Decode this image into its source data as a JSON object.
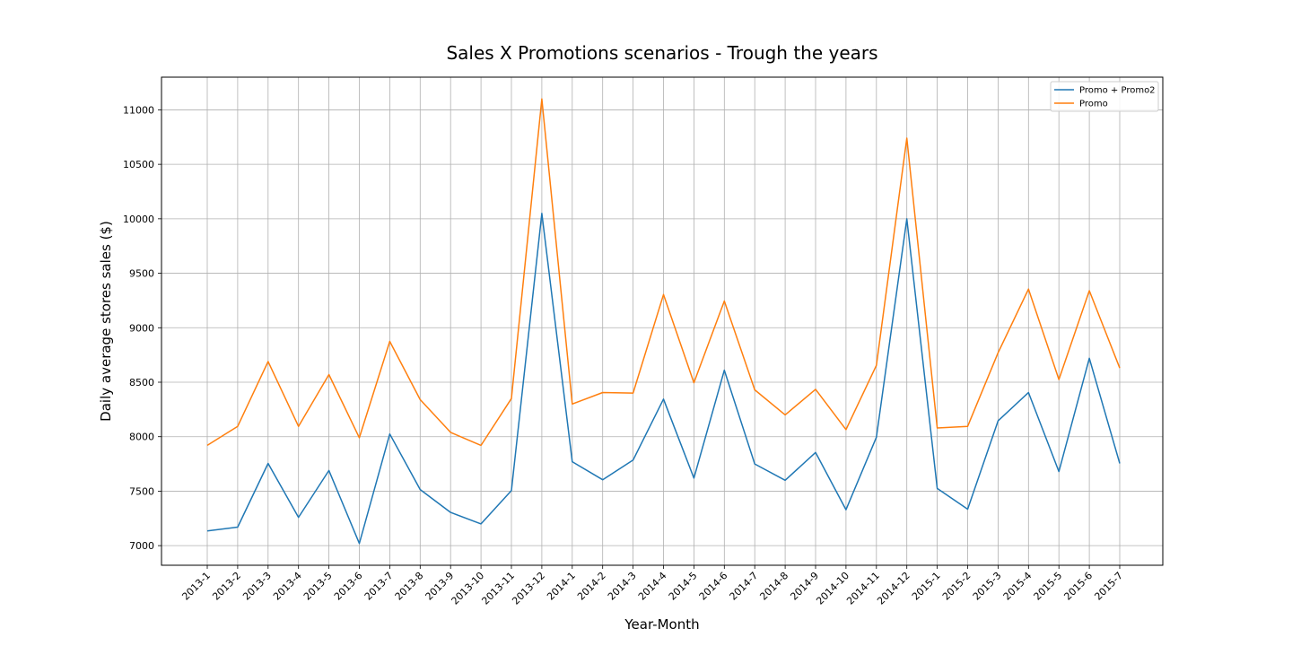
{
  "chart_data": {
    "type": "line",
    "title": "Sales X Promotions scenarios - Trough the years",
    "xlabel": "Year-Month",
    "ylabel": "Daily average stores sales ($)",
    "categories": [
      "2013-1",
      "2013-2",
      "2013-3",
      "2013-4",
      "2013-5",
      "2013-6",
      "2013-7",
      "2013-8",
      "2013-9",
      "2013-10",
      "2013-11",
      "2013-12",
      "2014-1",
      "2014-2",
      "2014-3",
      "2014-4",
      "2014-5",
      "2014-6",
      "2014-7",
      "2014-8",
      "2014-9",
      "2014-10",
      "2014-11",
      "2014-12",
      "2015-1",
      "2015-2",
      "2015-3",
      "2015-4",
      "2015-5",
      "2015-6",
      "2015-7"
    ],
    "yticks": [
      7000,
      7500,
      8000,
      8500,
      9000,
      9500,
      10000,
      10500,
      11000
    ],
    "ylim": [
      6820,
      11300
    ],
    "grid": true,
    "legend_position": "top-right",
    "series": [
      {
        "name": "Promo + Promo2",
        "color": "#1f77b4",
        "values": [
          7135,
          7170,
          7755,
          7260,
          7690,
          7020,
          8025,
          7515,
          7305,
          7200,
          7505,
          10050,
          7770,
          7605,
          7785,
          8345,
          7620,
          8610,
          7750,
          7600,
          7855,
          7330,
          7995,
          10000,
          7525,
          7335,
          8145,
          8405,
          7680,
          8720,
          7755
        ]
      },
      {
        "name": "Promo",
        "color": "#ff7f0e",
        "values": [
          7920,
          8095,
          8690,
          8095,
          8570,
          7990,
          8875,
          8340,
          8040,
          7920,
          8350,
          11100,
          8300,
          8405,
          8400,
          9305,
          8495,
          9245,
          8430,
          8200,
          8435,
          8065,
          8655,
          10740,
          8080,
          8095,
          8770,
          9355,
          8525,
          9340,
          8630
        ]
      }
    ]
  }
}
